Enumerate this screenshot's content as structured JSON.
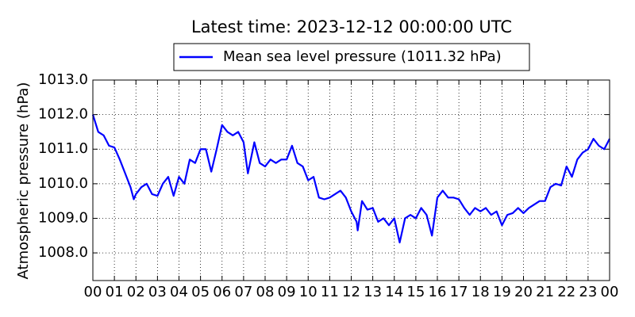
{
  "chart_data": {
    "type": "line",
    "title": "Latest time: 2023-12-12 00:00:00 UTC",
    "ylabel": "Atmospheric pressure (hPa)",
    "x": [
      0,
      0.25,
      0.5,
      0.75,
      1,
      1.25,
      1.5,
      1.75,
      1.9,
      2,
      2.25,
      2.5,
      2.75,
      3,
      3.25,
      3.5,
      3.75,
      4,
      4.25,
      4.5,
      4.75,
      5,
      5.25,
      5.5,
      5.75,
      6,
      6.25,
      6.5,
      6.75,
      7,
      7.2,
      7.5,
      7.75,
      8,
      8.25,
      8.5,
      8.75,
      9,
      9.25,
      9.5,
      9.75,
      10,
      10.25,
      10.5,
      10.75,
      11,
      11.25,
      11.5,
      11.75,
      12,
      12.25,
      12.3,
      12.5,
      12.75,
      13,
      13.25,
      13.5,
      13.75,
      14,
      14.25,
      14.5,
      14.75,
      15,
      15.25,
      15.5,
      15.75,
      16,
      16.25,
      16.5,
      16.75,
      17,
      17.25,
      17.5,
      17.75,
      18,
      18.25,
      18.5,
      18.75,
      19,
      19.25,
      19.5,
      19.75,
      20,
      20.25,
      20.5,
      20.75,
      21,
      21.25,
      21.5,
      21.75,
      22,
      22.25,
      22.5,
      22.75,
      23,
      23.25,
      23.5,
      23.75,
      24
    ],
    "series": [
      {
        "name": "Mean sea level pressure (1011.32 hPa)",
        "color": "#0000ff",
        "values": [
          1012.0,
          1011.5,
          1011.4,
          1011.1,
          1011.05,
          1010.7,
          1010.3,
          1009.9,
          1009.55,
          1009.7,
          1009.9,
          1010.0,
          1009.7,
          1009.65,
          1010.0,
          1010.2,
          1009.65,
          1010.2,
          1010.0,
          1010.7,
          1010.6,
          1011.0,
          1011.0,
          1010.35,
          1011.0,
          1011.7,
          1011.5,
          1011.4,
          1011.5,
          1011.2,
          1010.3,
          1011.2,
          1010.6,
          1010.5,
          1010.7,
          1010.6,
          1010.7,
          1010.7,
          1011.1,
          1010.6,
          1010.5,
          1010.1,
          1010.2,
          1009.6,
          1009.55,
          1009.6,
          1009.7,
          1009.8,
          1009.6,
          1009.2,
          1008.9,
          1008.65,
          1009.5,
          1009.25,
          1009.3,
          1008.9,
          1009.0,
          1008.8,
          1009.0,
          1008.3,
          1009.0,
          1009.1,
          1009.0,
          1009.3,
          1009.1,
          1008.5,
          1009.6,
          1009.8,
          1009.6,
          1009.6,
          1009.55,
          1009.3,
          1009.1,
          1009.3,
          1009.2,
          1009.3,
          1009.1,
          1009.2,
          1008.8,
          1009.1,
          1009.15,
          1009.3,
          1009.15,
          1009.3,
          1009.4,
          1009.5,
          1009.5,
          1009.9,
          1010.0,
          1009.95,
          1010.5,
          1010.2,
          1010.7,
          1010.9,
          1011.0,
          1011.3,
          1011.1,
          1011.0,
          1011.3
        ]
      }
    ],
    "xlim": [
      0,
      24
    ],
    "xticks": [
      {
        "value": 0,
        "label": "00"
      },
      {
        "value": 1,
        "label": "01"
      },
      {
        "value": 2,
        "label": "02"
      },
      {
        "value": 3,
        "label": "03"
      },
      {
        "value": 4,
        "label": "04"
      },
      {
        "value": 5,
        "label": "05"
      },
      {
        "value": 6,
        "label": "06"
      },
      {
        "value": 7,
        "label": "07"
      },
      {
        "value": 8,
        "label": "08"
      },
      {
        "value": 9,
        "label": "09"
      },
      {
        "value": 10,
        "label": "10"
      },
      {
        "value": 11,
        "label": "11"
      },
      {
        "value": 12,
        "label": "12"
      },
      {
        "value": 13,
        "label": "13"
      },
      {
        "value": 14,
        "label": "14"
      },
      {
        "value": 15,
        "label": "15"
      },
      {
        "value": 16,
        "label": "16"
      },
      {
        "value": 17,
        "label": "17"
      },
      {
        "value": 18,
        "label": "18"
      },
      {
        "value": 19,
        "label": "19"
      },
      {
        "value": 20,
        "label": "20"
      },
      {
        "value": 21,
        "label": "21"
      },
      {
        "value": 22,
        "label": "22"
      },
      {
        "value": 23,
        "label": "23"
      },
      {
        "value": 24,
        "label": "00"
      }
    ],
    "ylim": [
      1007.2,
      1013.0
    ],
    "yticks": [
      {
        "value": 1008,
        "label": "1008.0"
      },
      {
        "value": 1009,
        "label": "1009.0"
      },
      {
        "value": 1010,
        "label": "1010.0"
      },
      {
        "value": 1011,
        "label": "1011.0"
      },
      {
        "value": 1012,
        "label": "1012.0"
      },
      {
        "value": 1013,
        "label": "1013.0"
      }
    ],
    "grid": true,
    "legend": "top"
  }
}
